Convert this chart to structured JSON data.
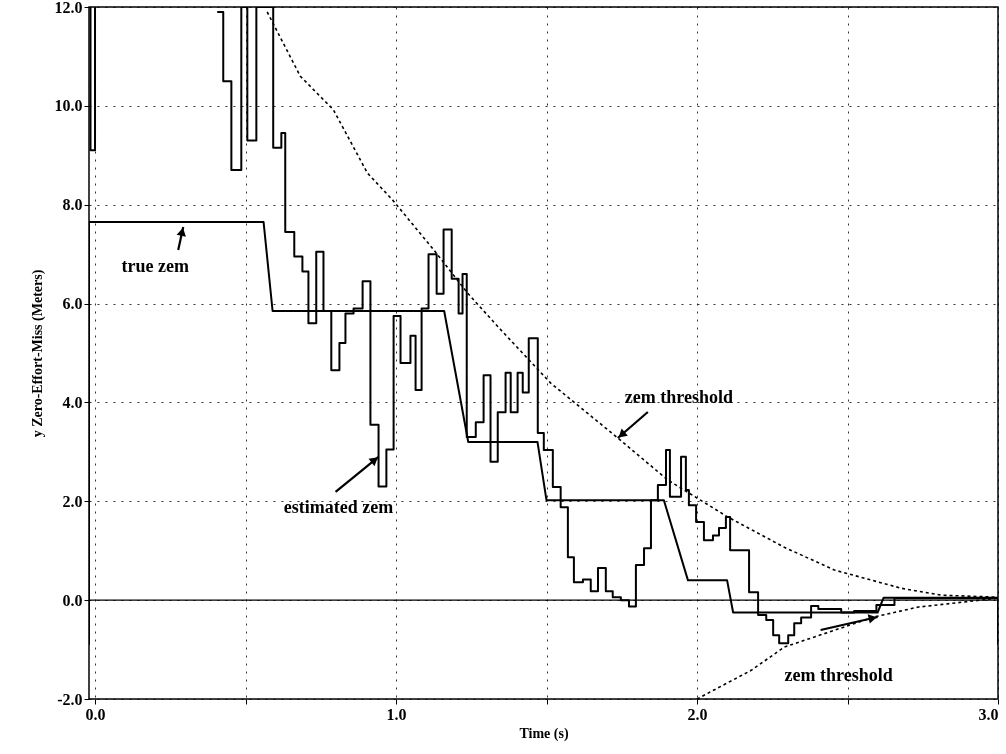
{
  "chart_data": {
    "type": "line",
    "xlabel": "Time (s)",
    "ylabel": "y Zero-Effort-Miss (Meters)",
    "xlim": [
      -0.02,
      3.0
    ],
    "ylim": [
      -2.0,
      12.0
    ],
    "xticks": [
      {
        "value": 0,
        "label": "0.0"
      },
      {
        "value": 0.5,
        "label": null
      },
      {
        "value": 1,
        "label": "1.0"
      },
      {
        "value": 1.5,
        "label": null
      },
      {
        "value": 2,
        "label": "2.0"
      },
      {
        "value": 2.5,
        "label": null
      },
      {
        "value": 3,
        "label": "3.0"
      }
    ],
    "yticks": [
      {
        "value": -2,
        "label": "-2.0"
      },
      {
        "value": 0,
        "label": "0.0"
      },
      {
        "value": 2,
        "label": "2.0"
      },
      {
        "value": 4,
        "label": "4.0"
      },
      {
        "value": 6,
        "label": "6.0"
      },
      {
        "value": 8,
        "label": "8.0"
      },
      {
        "value": 10,
        "label": "10.0"
      },
      {
        "value": 12,
        "label": "12.0"
      }
    ],
    "grid": true,
    "series": [
      {
        "color": "#000000",
        "line_style": "solid",
        "x": [
          -0.02,
          -0.02,
          0.56,
          0.59,
          1.16,
          1.24,
          1.47,
          1.5,
          1.89,
          1.97,
          2.1,
          2.12,
          2.6,
          2.62,
          3.0,
          3.0
        ],
        "values": [
          -0.9,
          7.65,
          7.65,
          5.85,
          5.85,
          3.2,
          3.2,
          2.02,
          2.02,
          0.4,
          0.4,
          -0.25,
          -0.25,
          0.05,
          0.05,
          -0.9
        ]
      },
      {
        "type": "step",
        "color": "#000000",
        "line_style": "solid",
        "x": [
          -0.018,
          -0.015,
          0.0,
          0.003,
          0.406,
          0.426,
          0.453,
          0.486,
          0.506,
          0.536,
          0.592,
          0.619,
          0.632,
          0.662,
          0.689,
          0.709,
          0.735,
          0.759,
          0.785,
          0.812,
          0.832,
          0.859,
          0.889,
          0.915,
          0.942,
          0.968,
          0.992,
          1.015,
          1.048,
          1.065,
          1.085,
          1.108,
          1.135,
          1.158,
          1.185,
          1.208,
          1.221,
          1.235,
          1.265,
          1.291,
          1.314,
          1.338,
          1.364,
          1.381,
          1.404,
          1.421,
          1.441,
          1.471,
          1.491,
          1.521,
          1.547,
          1.571,
          1.591,
          1.621,
          1.647,
          1.671,
          1.697,
          1.72,
          1.747,
          1.774,
          1.797,
          1.824,
          1.847,
          1.87,
          1.897,
          1.91,
          1.947,
          1.963,
          1.973,
          1.997,
          2.023,
          2.053,
          2.073,
          2.096,
          2.11,
          2.173,
          2.203,
          2.23,
          2.253,
          2.273,
          2.303,
          2.323,
          2.346,
          2.379,
          2.403,
          2.479,
          2.522,
          2.596,
          2.656,
          3.0
        ],
        "values": [
          12.0,
          9.1,
          12.0,
          null,
          11.9,
          10.5,
          8.7,
          12.0,
          9.3,
          12.0,
          9.15,
          9.45,
          7.45,
          6.95,
          6.65,
          5.6,
          7.05,
          5.85,
          4.65,
          5.2,
          5.8,
          5.9,
          6.45,
          3.55,
          2.3,
          3.05,
          5.75,
          4.8,
          5.35,
          4.25,
          5.9,
          7.0,
          6.2,
          7.5,
          6.5,
          5.8,
          6.6,
          3.3,
          3.6,
          4.55,
          2.8,
          3.8,
          4.6,
          3.8,
          4.6,
          4.2,
          5.3,
          3.38,
          3.04,
          2.29,
          1.88,
          0.87,
          0.36,
          0.42,
          0.18,
          0.65,
          0.18,
          0.06,
          0.0,
          -0.13,
          0.71,
          1.05,
          2.02,
          2.33,
          3.04,
          2.09,
          2.9,
          2.23,
          1.92,
          1.58,
          1.21,
          1.31,
          1.46,
          1.68,
          1.01,
          0.16,
          -0.3,
          -0.4,
          -0.71,
          -0.87,
          -0.71,
          -0.47,
          -0.35,
          -0.12,
          -0.18,
          -0.25,
          -0.22,
          -0.1,
          0.04,
          0.04
        ]
      },
      {
        "color": "#000000",
        "line_style": "dashed",
        "x": [
          0.572,
          0.682,
          0.792,
          0.905,
          0.988,
          1.125,
          1.238,
          1.348,
          1.514,
          1.737,
          1.903,
          2.103,
          2.29,
          2.456,
          2.679,
          2.812,
          3.0
        ],
        "values": [
          11.9,
          10.6,
          9.92,
          8.64,
          8.1,
          7.09,
          6.21,
          5.47,
          4.39,
          3.28,
          2.43,
          1.68,
          1.07,
          0.61,
          0.24,
          0.1,
          0.06
        ]
      },
      {
        "color": "#000000",
        "line_style": "dashed",
        "x": [
          2.0,
          2.18,
          2.29,
          2.456,
          2.589,
          2.735,
          3.0
        ],
        "values": [
          -2.0,
          -1.42,
          -0.95,
          -0.61,
          -0.34,
          -0.14,
          0.04
        ]
      }
    ],
    "ref_lines": [
      {
        "axis": "y",
        "value": 0,
        "color": "#000000"
      }
    ],
    "annotations": [
      {
        "text": "true zem",
        "x": 0.293,
        "y": 7.55
      },
      {
        "text": "estimated zem",
        "x": 0.942,
        "y": 2.9
      },
      {
        "text": "zem threshold",
        "x": 1.737,
        "y": 3.28
      },
      {
        "text": "zem threshold",
        "x": 2.6,
        "y": -0.34
      }
    ]
  }
}
